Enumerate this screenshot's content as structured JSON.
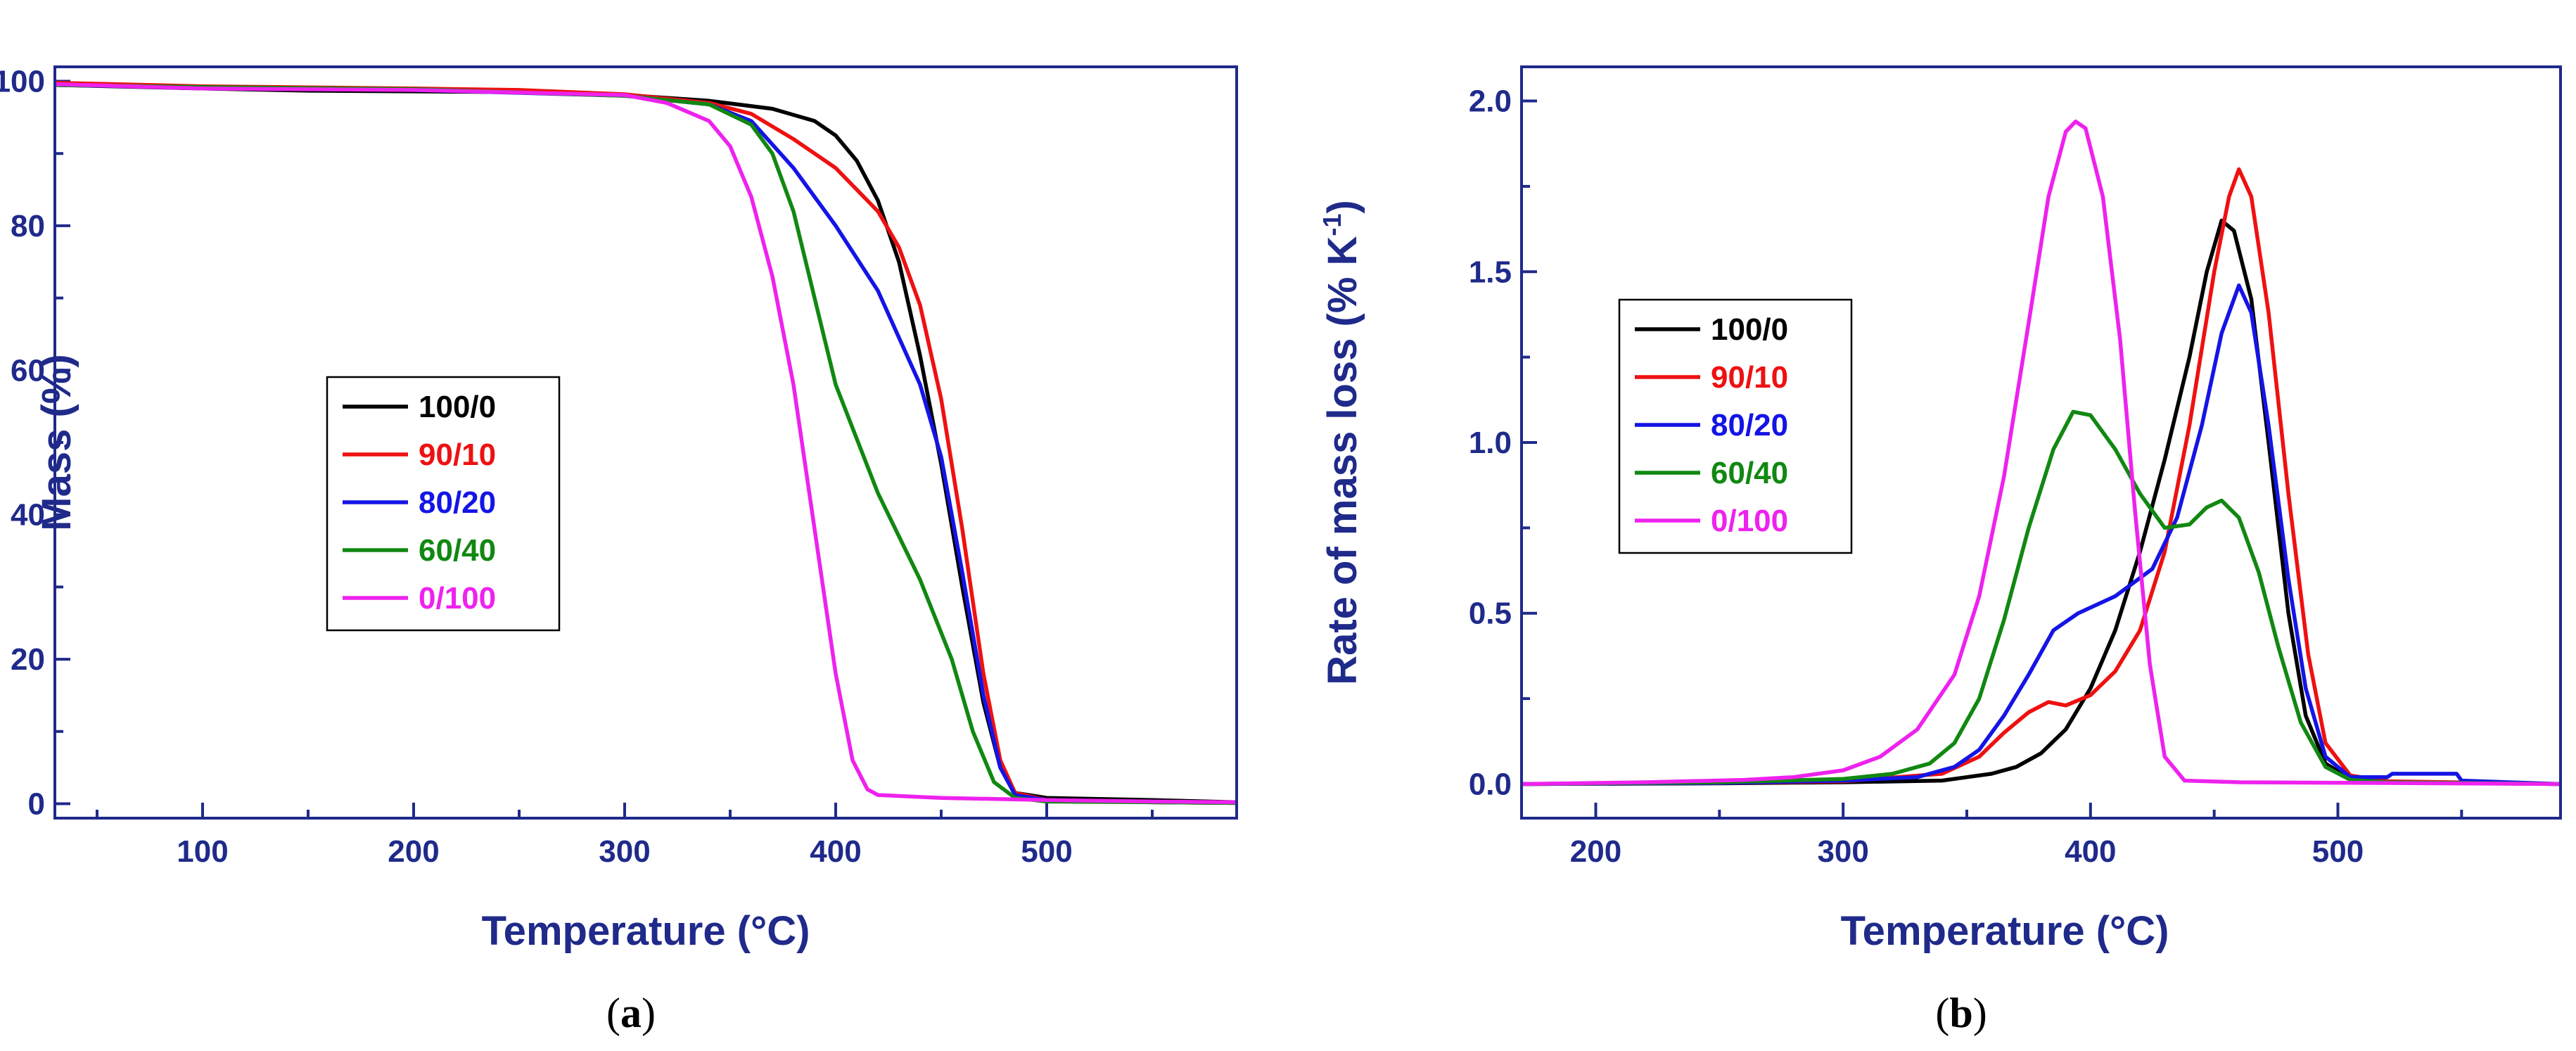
{
  "colors": {
    "axis": "#1f2a8a",
    "series": {
      "100/0": "#000000",
      "90/10": "#ee1111",
      "80/20": "#1414e6",
      "60/40": "#118811",
      "0/100": "#ee22ee"
    }
  },
  "chart_data": [
    {
      "id": "a",
      "type": "line",
      "panel_label": "a",
      "title": "",
      "xlabel": "Temperature (°C)",
      "ylabel": "Mass (%)",
      "xlim": [
        30,
        590
      ],
      "ylim": [
        -2,
        102
      ],
      "xticks": [
        100,
        200,
        300,
        400,
        500
      ],
      "yticks": [
        0,
        20,
        40,
        60,
        80,
        100
      ],
      "legend_position": "center-left",
      "series": [
        {
          "name": "100/0",
          "color": "#000000",
          "points": [
            [
              30,
              99.5
            ],
            [
              100,
              99.0
            ],
            [
              150,
              98.7
            ],
            [
              200,
              98.6
            ],
            [
              250,
              98.5
            ],
            [
              300,
              98.1
            ],
            [
              340,
              97.3
            ],
            [
              370,
              96.2
            ],
            [
              390,
              94.5
            ],
            [
              400,
              92.5
            ],
            [
              410,
              89.0
            ],
            [
              420,
              83.5
            ],
            [
              430,
              75.0
            ],
            [
              440,
              62.0
            ],
            [
              450,
              47.0
            ],
            [
              460,
              30.0
            ],
            [
              470,
              14.0
            ],
            [
              478,
              5.0
            ],
            [
              485,
              1.5
            ],
            [
              500,
              0.8
            ],
            [
              550,
              0.5
            ],
            [
              590,
              0.2
            ]
          ]
        },
        {
          "name": "90/10",
          "color": "#ee1111",
          "points": [
            [
              30,
              99.8
            ],
            [
              100,
              99.3
            ],
            [
              200,
              99.0
            ],
            [
              250,
              98.8
            ],
            [
              300,
              98.2
            ],
            [
              340,
              97.0
            ],
            [
              360,
              95.5
            ],
            [
              380,
              92.0
            ],
            [
              400,
              88.0
            ],
            [
              420,
              82.0
            ],
            [
              430,
              77.0
            ],
            [
              440,
              69.0
            ],
            [
              450,
              56.0
            ],
            [
              460,
              38.0
            ],
            [
              470,
              18.0
            ],
            [
              478,
              6.0
            ],
            [
              485,
              1.5
            ],
            [
              500,
              0.5
            ],
            [
              550,
              0.2
            ],
            [
              590,
              0.1
            ]
          ]
        },
        {
          "name": "80/20",
          "color": "#1414e6",
          "points": [
            [
              30,
              99.5
            ],
            [
              100,
              99.1
            ],
            [
              200,
              98.8
            ],
            [
              300,
              98.0
            ],
            [
              340,
              96.8
            ],
            [
              360,
              94.5
            ],
            [
              380,
              88.0
            ],
            [
              400,
              80.0
            ],
            [
              420,
              71.0
            ],
            [
              440,
              58.0
            ],
            [
              450,
              48.0
            ],
            [
              460,
              32.0
            ],
            [
              470,
              15.0
            ],
            [
              478,
              5.0
            ],
            [
              485,
              1.2
            ],
            [
              500,
              0.5
            ],
            [
              550,
              0.2
            ],
            [
              590,
              0.1
            ]
          ]
        },
        {
          "name": "60/40",
          "color": "#118811",
          "points": [
            [
              30,
              99.5
            ],
            [
              100,
              99.2
            ],
            [
              200,
              98.9
            ],
            [
              300,
              98.0
            ],
            [
              340,
              96.8
            ],
            [
              360,
              94.0
            ],
            [
              370,
              90.0
            ],
            [
              380,
              82.0
            ],
            [
              390,
              70.0
            ],
            [
              400,
              58.0
            ],
            [
              420,
              43.0
            ],
            [
              440,
              31.0
            ],
            [
              455,
              20.0
            ],
            [
              465,
              10.0
            ],
            [
              475,
              3.0
            ],
            [
              485,
              0.8
            ],
            [
              500,
              0.3
            ],
            [
              550,
              0.2
            ],
            [
              590,
              0.1
            ]
          ]
        },
        {
          "name": "0/100",
          "color": "#ee22ee",
          "points": [
            [
              30,
              99.6
            ],
            [
              100,
              99.0
            ],
            [
              200,
              98.8
            ],
            [
              300,
              98.1
            ],
            [
              320,
              97.0
            ],
            [
              340,
              94.5
            ],
            [
              350,
              91.0
            ],
            [
              360,
              84.0
            ],
            [
              370,
              73.0
            ],
            [
              380,
              58.0
            ],
            [
              390,
              38.0
            ],
            [
              400,
              18.0
            ],
            [
              408,
              6.0
            ],
            [
              415,
              2.0
            ],
            [
              420,
              1.2
            ],
            [
              450,
              0.8
            ],
            [
              500,
              0.5
            ],
            [
              550,
              0.3
            ],
            [
              590,
              0.2
            ]
          ]
        }
      ]
    },
    {
      "id": "b",
      "type": "line",
      "panel_label": "b",
      "title": "",
      "xlabel": "Temperature (°C)",
      "ylabel": "Rate of mass loss (% K",
      "ylabel_sup": "-1",
      "ylabel_end": ")",
      "xlim": [
        170,
        590
      ],
      "ylim": [
        -0.1,
        2.1
      ],
      "xticks": [
        200,
        300,
        400,
        500
      ],
      "yticks": [
        0.0,
        0.5,
        1.0,
        1.5,
        2.0
      ],
      "ytick_labels": [
        "0.0",
        "0.5",
        "1.0",
        "1.5",
        "2.0"
      ],
      "legend_position": "upper-left",
      "series": [
        {
          "name": "100/0",
          "color": "#000000",
          "points": [
            [
              170,
              0
            ],
            [
              250,
              0.002
            ],
            [
              300,
              0.005
            ],
            [
              340,
              0.01
            ],
            [
              360,
              0.03
            ],
            [
              370,
              0.05
            ],
            [
              380,
              0.09
            ],
            [
              390,
              0.16
            ],
            [
              400,
              0.28
            ],
            [
              410,
              0.45
            ],
            [
              420,
              0.68
            ],
            [
              430,
              0.95
            ],
            [
              440,
              1.25
            ],
            [
              447,
              1.5
            ],
            [
              453,
              1.65
            ],
            [
              458,
              1.62
            ],
            [
              465,
              1.42
            ],
            [
              472,
              1.0
            ],
            [
              480,
              0.5
            ],
            [
              487,
              0.2
            ],
            [
              495,
              0.06
            ],
            [
              505,
              0.015
            ],
            [
              520,
              0.005
            ],
            [
              590,
              0
            ]
          ]
        },
        {
          "name": "90/10",
          "color": "#ee1111",
          "points": [
            [
              170,
              0
            ],
            [
              250,
              0.003
            ],
            [
              300,
              0.008
            ],
            [
              340,
              0.03
            ],
            [
              355,
              0.08
            ],
            [
              365,
              0.15
            ],
            [
              375,
              0.21
            ],
            [
              383,
              0.24
            ],
            [
              390,
              0.23
            ],
            [
              400,
              0.26
            ],
            [
              410,
              0.33
            ],
            [
              420,
              0.45
            ],
            [
              430,
              0.68
            ],
            [
              440,
              1.05
            ],
            [
              450,
              1.5
            ],
            [
              456,
              1.72
            ],
            [
              460,
              1.8
            ],
            [
              465,
              1.72
            ],
            [
              472,
              1.38
            ],
            [
              480,
              0.85
            ],
            [
              488,
              0.38
            ],
            [
              495,
              0.12
            ],
            [
              505,
              0.025
            ],
            [
              520,
              0.008
            ],
            [
              590,
              0
            ]
          ]
        },
        {
          "name": "80/20",
          "color": "#1414e6",
          "points": [
            [
              170,
              0
            ],
            [
              250,
              0.003
            ],
            [
              300,
              0.01
            ],
            [
              330,
              0.02
            ],
            [
              345,
              0.05
            ],
            [
              355,
              0.1
            ],
            [
              365,
              0.2
            ],
            [
              375,
              0.32
            ],
            [
              385,
              0.45
            ],
            [
              395,
              0.5
            ],
            [
              410,
              0.55
            ],
            [
              425,
              0.63
            ],
            [
              435,
              0.78
            ],
            [
              445,
              1.05
            ],
            [
              453,
              1.32
            ],
            [
              460,
              1.46
            ],
            [
              465,
              1.38
            ],
            [
              472,
              1.05
            ],
            [
              480,
              0.6
            ],
            [
              487,
              0.28
            ],
            [
              495,
              0.08
            ],
            [
              505,
              0.02
            ],
            [
              520,
              0.02
            ],
            [
              522,
              0.03
            ],
            [
              548,
              0.03
            ],
            [
              550,
              0.01
            ],
            [
              590,
              0
            ]
          ]
        },
        {
          "name": "60/40",
          "color": "#118811",
          "points": [
            [
              170,
              0
            ],
            [
              250,
              0.005
            ],
            [
              300,
              0.015
            ],
            [
              320,
              0.03
            ],
            [
              335,
              0.06
            ],
            [
              345,
              0.12
            ],
            [
              355,
              0.25
            ],
            [
              365,
              0.48
            ],
            [
              375,
              0.75
            ],
            [
              385,
              0.98
            ],
            [
              393,
              1.09
            ],
            [
              400,
              1.08
            ],
            [
              410,
              0.98
            ],
            [
              420,
              0.85
            ],
            [
              430,
              0.75
            ],
            [
              440,
              0.76
            ],
            [
              447,
              0.81
            ],
            [
              453,
              0.83
            ],
            [
              460,
              0.78
            ],
            [
              468,
              0.62
            ],
            [
              476,
              0.4
            ],
            [
              485,
              0.18
            ],
            [
              495,
              0.05
            ],
            [
              505,
              0.012
            ],
            [
              520,
              0.005
            ],
            [
              590,
              0
            ]
          ]
        },
        {
          "name": "0/100",
          "color": "#ee22ee",
          "points": [
            [
              170,
              0
            ],
            [
              220,
              0.005
            ],
            [
              260,
              0.012
            ],
            [
              280,
              0.02
            ],
            [
              300,
              0.04
            ],
            [
              315,
              0.08
            ],
            [
              330,
              0.16
            ],
            [
              345,
              0.32
            ],
            [
              355,
              0.55
            ],
            [
              365,
              0.9
            ],
            [
              375,
              1.35
            ],
            [
              383,
              1.72
            ],
            [
              390,
              1.91
            ],
            [
              394,
              1.94
            ],
            [
              398,
              1.92
            ],
            [
              405,
              1.72
            ],
            [
              412,
              1.3
            ],
            [
              418,
              0.8
            ],
            [
              424,
              0.35
            ],
            [
              430,
              0.08
            ],
            [
              438,
              0.01
            ],
            [
              460,
              0.005
            ],
            [
              520,
              0.003
            ],
            [
              590,
              0
            ]
          ]
        }
      ]
    }
  ]
}
